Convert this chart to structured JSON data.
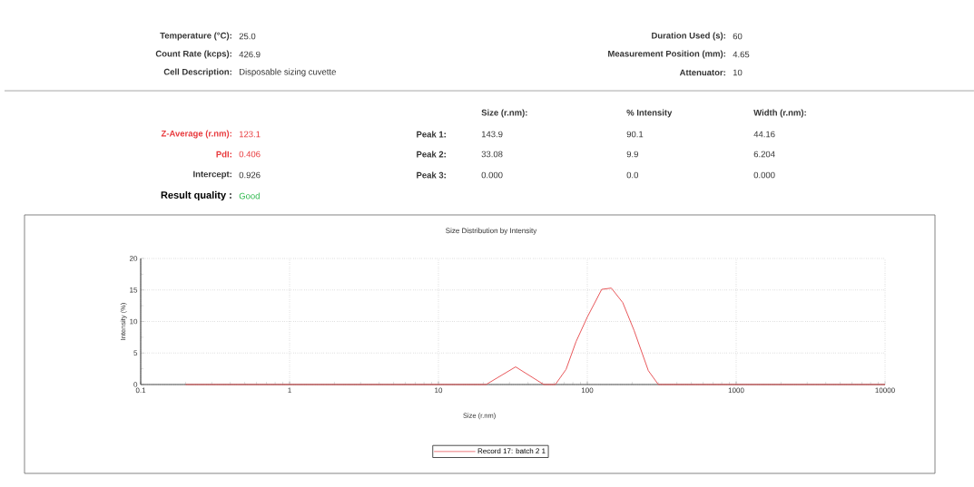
{
  "chart_data": {
    "type": "line",
    "title": "Size Distribution by Intensity",
    "xlabel": "Size (r.nm)",
    "ylabel": "Intensity (%)",
    "log": "x",
    "xlim": [
      0.1,
      10000
    ],
    "xticks": [
      0.1,
      1,
      10,
      100,
      1000,
      10000
    ],
    "ylim": [
      0,
      20
    ],
    "yticks": [
      0,
      5,
      10,
      15,
      20
    ],
    "grid": true,
    "legend": "bottom",
    "marker": "none",
    "line_style": "solid",
    "series": [
      {
        "name": "Record 17: batch 2 1",
        "color": "#e8575a",
        "x": [
          0.2,
          20.9,
          33,
          51,
          61,
          72,
          84,
          100,
          125,
          145,
          173,
          206,
          257,
          300,
          10000
        ],
        "values": [
          0,
          0,
          2.8,
          0,
          0,
          2.4,
          6.8,
          10.7,
          15.1,
          15.3,
          13.0,
          8.6,
          2.2,
          0,
          0
        ]
      }
    ],
    "annotations": [
      "Temperature (°C):",
      "25.0",
      "Count Rate (kcps):",
      "426.9",
      "Cell Description:",
      "Disposable sizing cuvette",
      "Duration Used (s):",
      "60",
      "Measurement Position (mm):",
      "4.65",
      "Attenuator:",
      "10",
      "Z-Average (r.nm):",
      "123.1",
      "PdI:",
      "0.406",
      "Intercept:",
      "0.926",
      "Result quality :",
      "Good",
      "Size (r.nm):",
      "% Intensity",
      "Width (r.nm):",
      "Peak 1:",
      "143.9",
      "90.1",
      "44.16",
      "Peak 2:",
      "33.08",
      "9.9",
      "6.204",
      "Peak 3:",
      "0.000",
      "0.0",
      "0.000"
    ]
  }
}
